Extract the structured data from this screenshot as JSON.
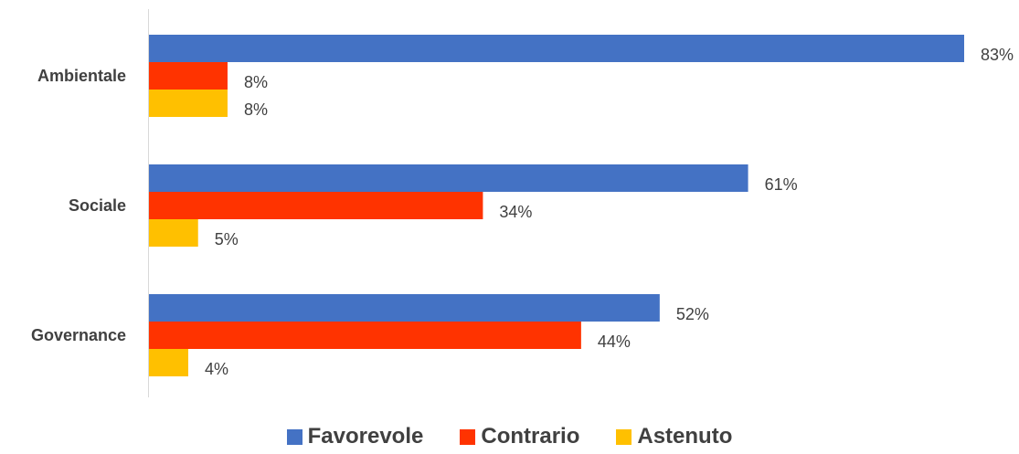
{
  "chart_data": {
    "type": "bar",
    "orientation": "horizontal",
    "categories": [
      "Ambientale",
      "Sociale",
      "Governance"
    ],
    "series": [
      {
        "name": "Favorevole",
        "color": "#4472C4",
        "values": [
          83,
          61,
          52
        ],
        "labels": [
          "83%",
          "61%",
          "52%"
        ]
      },
      {
        "name": "Contrario",
        "color": "#FF3300",
        "values": [
          8,
          34,
          44
        ],
        "labels": [
          "8%",
          "34%",
          "44%"
        ]
      },
      {
        "name": "Astenuto",
        "color": "#FFC000",
        "values": [
          8,
          5,
          4
        ],
        "labels": [
          "8%",
          "5%",
          "4%"
        ]
      }
    ],
    "xlim": [
      0,
      83
    ],
    "grid": false,
    "legend_position": "bottom"
  }
}
